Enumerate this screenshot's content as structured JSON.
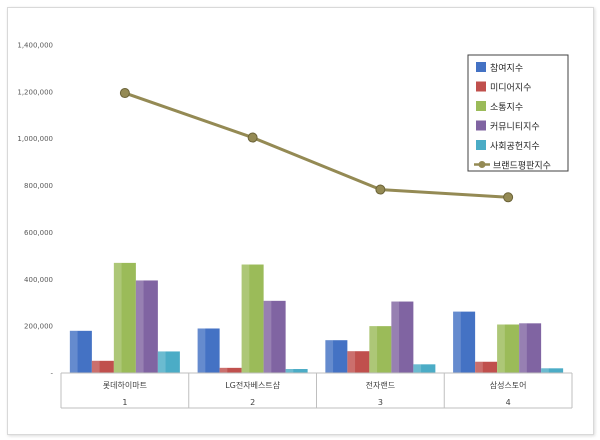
{
  "chart_data": {
    "type": "bar",
    "categories": [
      "롯데하이마트",
      "LG전자베스트샵",
      "전자랜드",
      "삼성스토어"
    ],
    "category_numbers": [
      "1",
      "2",
      "3",
      "4"
    ],
    "series": [
      {
        "name": "참여지수",
        "values": [
          180000,
          190000,
          140000,
          262000
        ],
        "color": "#4472c4"
      },
      {
        "name": "미디어지수",
        "values": [
          52000,
          22000,
          93000,
          48000
        ],
        "color": "#c0504d"
      },
      {
        "name": "소통지수",
        "values": [
          470000,
          463000,
          200000,
          207000
        ],
        "color": "#9bbb59"
      },
      {
        "name": "커뮤니티지수",
        "values": [
          395000,
          308000,
          305000,
          212000
        ],
        "color": "#8064a2"
      },
      {
        "name": "사회공헌지수",
        "values": [
          92000,
          17000,
          37000,
          20000
        ],
        "color": "#4bacc6"
      }
    ],
    "line_series": {
      "name": "브랜드평판지수",
      "values": [
        1195000,
        1005000,
        783000,
        750000
      ],
      "color": "#948a54"
    },
    "ylim": [
      0,
      1400000
    ],
    "yticks": [
      "-",
      "200,000",
      "400,000",
      "600,000",
      "800,000",
      "1,000,000",
      "1,200,000",
      "1,400,000"
    ],
    "grid": false,
    "legend": "top-right"
  }
}
